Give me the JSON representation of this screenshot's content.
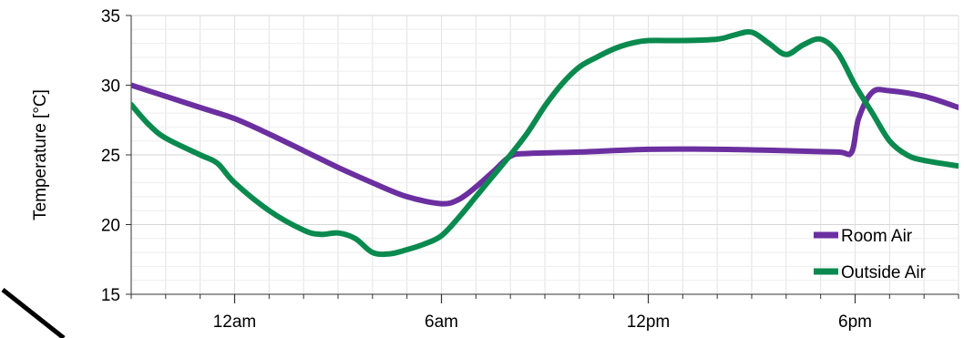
{
  "chart_data": {
    "type": "line",
    "title": "",
    "xlabel": "",
    "ylabel": "Temperature [°C]",
    "ylim": [
      15,
      35
    ],
    "yticks": [
      15,
      20,
      25,
      30,
      35
    ],
    "x_ticks": [
      {
        "hours": 3,
        "label": "12am"
      },
      {
        "hours": 9,
        "label": "6am"
      },
      {
        "hours": 15,
        "label": "12pm"
      },
      {
        "hours": 21,
        "label": "6pm"
      }
    ],
    "xlim_hours": [
      0,
      24
    ],
    "grid": true,
    "legend": "bottom-right",
    "series": [
      {
        "name": "Room Air",
        "color": "#6b2fa0",
        "points": [
          [
            0,
            30.0
          ],
          [
            1,
            29.2
          ],
          [
            2,
            28.4
          ],
          [
            3,
            27.6
          ],
          [
            4,
            26.5
          ],
          [
            5,
            25.3
          ],
          [
            6,
            24.1
          ],
          [
            7,
            23.0
          ],
          [
            8,
            22.0
          ],
          [
            9,
            21.5
          ],
          [
            9.5,
            21.8
          ],
          [
            10,
            22.7
          ],
          [
            10.5,
            23.8
          ],
          [
            11,
            24.9
          ],
          [
            11.5,
            25.1
          ],
          [
            13,
            25.2
          ],
          [
            15,
            25.4
          ],
          [
            17,
            25.4
          ],
          [
            19,
            25.3
          ],
          [
            20.5,
            25.2
          ],
          [
            20.9,
            25.2
          ],
          [
            21.1,
            27.6
          ],
          [
            21.5,
            29.5
          ],
          [
            22,
            29.6
          ],
          [
            23,
            29.2
          ],
          [
            24,
            28.4
          ]
        ]
      },
      {
        "name": "Outside Air",
        "color": "#0a8a4e",
        "points": [
          [
            0,
            28.6
          ],
          [
            0.5,
            27.2
          ],
          [
            1,
            26.2
          ],
          [
            2,
            25.0
          ],
          [
            2.5,
            24.4
          ],
          [
            3,
            23.0
          ],
          [
            4,
            21.0
          ],
          [
            5,
            19.6
          ],
          [
            5.5,
            19.3
          ],
          [
            6,
            19.4
          ],
          [
            6.5,
            19.0
          ],
          [
            7,
            18.0
          ],
          [
            7.5,
            17.9
          ],
          [
            8,
            18.2
          ],
          [
            8.5,
            18.6
          ],
          [
            9,
            19.2
          ],
          [
            9.5,
            20.5
          ],
          [
            10,
            22.0
          ],
          [
            10.5,
            23.5
          ],
          [
            11,
            25.0
          ],
          [
            11.5,
            26.6
          ],
          [
            12,
            28.5
          ],
          [
            12.5,
            30.1
          ],
          [
            13,
            31.3
          ],
          [
            13.5,
            32.0
          ],
          [
            14,
            32.6
          ],
          [
            14.5,
            33.0
          ],
          [
            15,
            33.2
          ],
          [
            16,
            33.2
          ],
          [
            17,
            33.3
          ],
          [
            17.5,
            33.6
          ],
          [
            18,
            33.8
          ],
          [
            18.5,
            33.0
          ],
          [
            19,
            32.2
          ],
          [
            19.5,
            32.9
          ],
          [
            20,
            33.3
          ],
          [
            20.5,
            32.3
          ],
          [
            21,
            30.0
          ],
          [
            21.5,
            28.0
          ],
          [
            22,
            26.0
          ],
          [
            22.5,
            25.0
          ],
          [
            23,
            24.6
          ],
          [
            24,
            24.2
          ]
        ]
      }
    ]
  }
}
